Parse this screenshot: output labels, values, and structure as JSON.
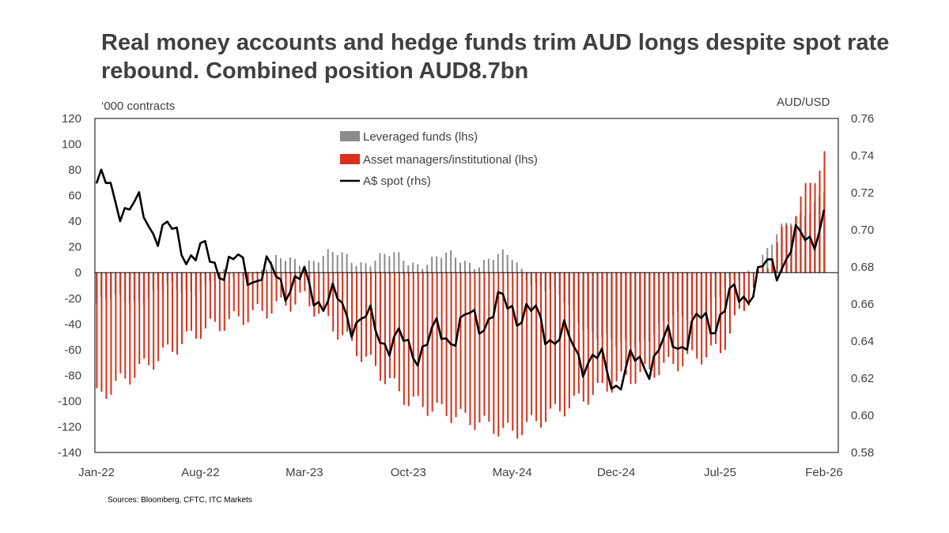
{
  "title": "Real money accounts and hedge funds trim AUD longs despite spot rate rebound. Combined position AUD8.7bn",
  "source": "Sources: Bloomberg, CFTC, ITC Markets",
  "colors": {
    "leveraged": "#8c8c8c",
    "asset": "#d9301a",
    "spot": "#000000"
  },
  "chart_data": {
    "type": "bar",
    "title": "Real money accounts and hedge funds trim AUD longs despite spot rate rebound. Combined position AUD8.7bn",
    "left_axis": {
      "label": "‘000 contracts",
      "ylim": [
        -140,
        120
      ],
      "ticks": [
        "120",
        "100",
        "80",
        "60",
        "40",
        "20",
        "0",
        "-20",
        "-40",
        "-60",
        "-80",
        "-100",
        "-120",
        "-140"
      ]
    },
    "right_axis": {
      "label": "AUD/USD",
      "ylim": [
        0.58,
        0.76
      ],
      "ticks": [
        "0.76",
        "0.74",
        "0.72",
        "0.70",
        "0.68",
        "0.66",
        "0.64",
        "0.62",
        "0.60",
        "0.58"
      ]
    },
    "x_tick_labels": [
      "Jan-22",
      "Aug-22",
      "Mar-23",
      "Oct-23",
      "May-24",
      "Dec-24",
      "Jul-25",
      "Feb-26"
    ],
    "legend_placement": "top-center",
    "grid": false,
    "series": [
      {
        "name": "Leveraged funds (lhs)",
        "type": "bar",
        "axis": "left",
        "points": [
          [
            "Jan-22",
            -25
          ],
          [
            "Aug-22",
            -10
          ],
          [
            "Mar-23",
            12
          ],
          [
            "Oct-23",
            10
          ],
          [
            "May-24",
            10
          ],
          [
            "Dec-24",
            -60
          ],
          [
            "Jul-25",
            -20
          ],
          [
            "Feb-26",
            65
          ]
        ]
      },
      {
        "name": "Asset managers/institutional (lhs)",
        "type": "bar",
        "axis": "left",
        "points": [
          [
            "Jan-22",
            -97
          ],
          [
            "Aug-22",
            -45
          ],
          [
            "Mar-23",
            -20
          ],
          [
            "Oct-23",
            -100
          ],
          [
            "May-24",
            -125
          ],
          [
            "Dec-24",
            -85
          ],
          [
            "Jul-25",
            -60
          ],
          [
            "Feb-26",
            90
          ]
        ]
      },
      {
        "name": "A$ spot (rhs)",
        "type": "line",
        "axis": "right",
        "points": [
          [
            "Jan-22",
            0.725
          ],
          [
            "Aug-22",
            0.685
          ],
          [
            "Mar-23",
            0.67
          ],
          [
            "Oct-23",
            0.635
          ],
          [
            "May-24",
            0.66
          ],
          [
            "Dec-24",
            0.62
          ],
          [
            "Jul-25",
            0.655
          ],
          [
            "Feb-26",
            0.705
          ]
        ]
      }
    ]
  },
  "legend": [
    {
      "label": "Leveraged funds (lhs)",
      "type": "bar"
    },
    {
      "label": "Asset managers/institutional (lhs)",
      "type": "bar"
    },
    {
      "label": "A$ spot (rhs)",
      "type": "line"
    }
  ]
}
